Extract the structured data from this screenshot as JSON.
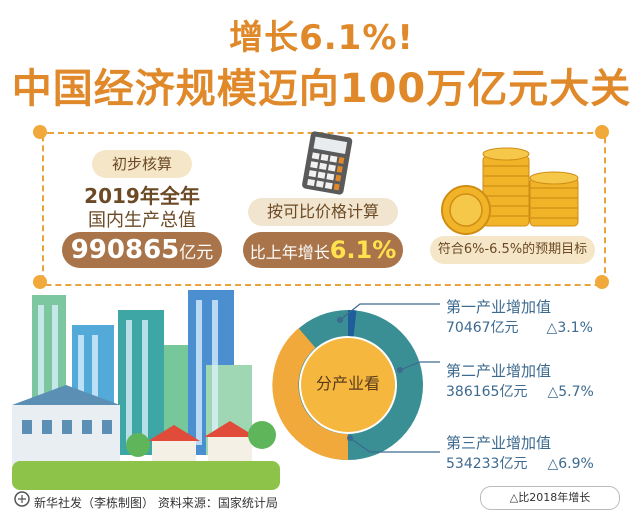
{
  "title": {
    "line1": "增长6.1%!",
    "line2": "中国经济规模迈向100万亿元大关"
  },
  "summary": {
    "label": "初步核算",
    "year": "2019年全年",
    "metric": "国内生产总值",
    "value": "990865",
    "unit": "亿元",
    "calc_method": "按可比价格计算",
    "growth_prefix": "比上年增长",
    "growth_value": "6.1%",
    "expectation": "符合6%-6.5%的预期目标"
  },
  "industries": {
    "center_label": "分产业看",
    "items": [
      {
        "name": "第一产业增加值",
        "value": "70467亿元",
        "change": "△3.1%"
      },
      {
        "name": "第二产业增加值",
        "value": "386165亿元",
        "change": "△5.7%"
      },
      {
        "name": "第三产业增加值",
        "value": "534233亿元",
        "change": "△6.9%"
      }
    ]
  },
  "footer": {
    "credit": "新华社发（李栋制图）   资料来源：国家统计局",
    "note": "△比2018年增长"
  },
  "colors": {
    "accent": "#e0892b",
    "brown": "#a9744a",
    "ring_yellow": "#f0a93a",
    "ring_teal": "#3a8f95",
    "ring_blue": "#1f5d9b"
  },
  "icons": [
    "calculator-icon",
    "coins-icon",
    "city-buildings-icon",
    "donut-ring-icon",
    "xinhua-logo-icon"
  ]
}
